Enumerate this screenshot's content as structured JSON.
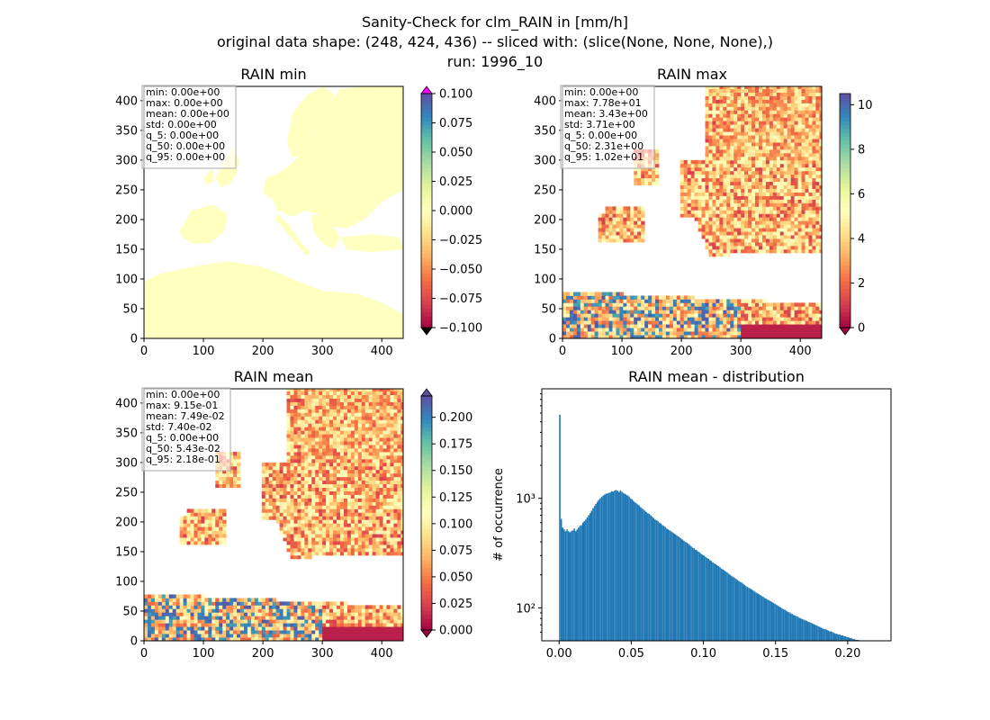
{
  "figure": {
    "title_lines": [
      "Sanity-Check for clm_RAIN in [mm/h]",
      "original data shape: (248, 424, 436) -- sliced with: (slice(None, None, None),)",
      "run: 1996_10"
    ]
  },
  "colors": {
    "axis": "#000000",
    "land_min": "#ffffbf",
    "hist_bar": "#1f77b4",
    "over_arrow_min": "#ff00ff",
    "under_arrow": "#000000",
    "spectral_r": [
      "#9e0142",
      "#d53e4f",
      "#f46d43",
      "#fdae61",
      "#fee08b",
      "#ffffbf",
      "#e6f598",
      "#abdda4",
      "#66c2a5",
      "#3288bd",
      "#5e4fa2"
    ]
  },
  "chart_data": [
    {
      "type": "heatmap",
      "title": "RAIN min",
      "xlim": [
        0,
        436
      ],
      "ylim": [
        0,
        424
      ],
      "x_ticks": [
        0,
        100,
        200,
        300,
        400
      ],
      "y_ticks": [
        0,
        50,
        100,
        150,
        200,
        250,
        300,
        350,
        400
      ],
      "colorbar": {
        "range": [
          -0.1,
          0.1
        ],
        "ticks": [
          -0.1,
          -0.075,
          -0.05,
          -0.025,
          0.0,
          0.025,
          0.05,
          0.075,
          0.1
        ],
        "tick_labels": [
          "−0.100",
          "−0.075",
          "−0.050",
          "−0.025",
          "0.000",
          "0.025",
          "0.050",
          "0.075",
          "0.100"
        ],
        "extend": "both"
      },
      "stats": [
        "min: 0.00e+00",
        "max: 0.00e+00",
        "mean: 0.00e+00",
        "std: 0.00e+00",
        "q_5: 0.00e+00",
        "q_50: 0.00e+00",
        "q_95: 0.00e+00"
      ]
    },
    {
      "type": "heatmap",
      "title": "RAIN max",
      "xlim": [
        0,
        436
      ],
      "ylim": [
        0,
        424
      ],
      "x_ticks": [
        0,
        100,
        200,
        300,
        400
      ],
      "y_ticks": [
        0,
        50,
        100,
        150,
        200,
        250,
        300,
        350,
        400
      ],
      "colorbar": {
        "range": [
          0,
          10.5
        ],
        "ticks": [
          0,
          2,
          4,
          6,
          8,
          10
        ],
        "tick_labels": [
          "0",
          "2",
          "4",
          "6",
          "8",
          "10"
        ],
        "extend": "min"
      },
      "stats": [
        "min: 0.00e+00",
        "max: 7.78e+01",
        "mean: 3.43e+00",
        "std: 3.71e+00",
        "q_5: 0.00e+00",
        "q_50: 2.31e+00",
        "q_95: 1.02e+01"
      ]
    },
    {
      "type": "heatmap",
      "title": "RAIN mean",
      "xlim": [
        0,
        436
      ],
      "ylim": [
        0,
        424
      ],
      "x_ticks": [
        0,
        100,
        200,
        300,
        400
      ],
      "y_ticks": [
        0,
        50,
        100,
        150,
        200,
        250,
        300,
        350,
        400
      ],
      "colorbar": {
        "range": [
          0,
          0.22
        ],
        "ticks": [
          0,
          0.025,
          0.05,
          0.075,
          0.1,
          0.125,
          0.15,
          0.175,
          0.2
        ],
        "tick_labels": [
          "0.000",
          "0.025",
          "0.050",
          "0.075",
          "0.100",
          "0.125",
          "0.150",
          "0.175",
          "0.200"
        ],
        "extend": "both"
      },
      "stats": [
        "min: 0.00e+00",
        "max: 9.15e-01",
        "mean: 7.49e-02",
        "std: 7.40e-02",
        "q_5: 0.00e+00",
        "q_50: 5.43e-02",
        "q_95: 2.18e-01"
      ]
    },
    {
      "type": "bar",
      "title": "RAIN mean - distribution",
      "ylabel": "# of occurrence",
      "xlim": [
        -0.012,
        0.23
      ],
      "ylim": [
        50,
        10000
      ],
      "ylog": true,
      "x_ticks": [
        0.0,
        0.05,
        0.1,
        0.15,
        0.2
      ],
      "x_tick_labels": [
        "0.00",
        "0.05",
        "0.10",
        "0.15",
        "0.20"
      ],
      "y_ticks": [
        100,
        1000
      ],
      "y_tick_labels": [
        "10²",
        "10³"
      ],
      "bin_width": 0.001,
      "x_start": 0.0,
      "values": [
        5800,
        650,
        540,
        520,
        500,
        520,
        500,
        490,
        500,
        510,
        530,
        500,
        520,
        540,
        560,
        570,
        600,
        620,
        640,
        670,
        700,
        730,
        770,
        810,
        850,
        890,
        930,
        970,
        1000,
        1030,
        1060,
        1080,
        1100,
        1110,
        1120,
        1130,
        1160,
        1150,
        1180,
        1190,
        1170,
        1140,
        1180,
        1150,
        1120,
        1100,
        1080,
        1060,
        1040,
        1000,
        980,
        950,
        920,
        900,
        880,
        860,
        830,
        810,
        790,
        770,
        750,
        730,
        720,
        700,
        680,
        660,
        640,
        630,
        620,
        600,
        590,
        570,
        560,
        550,
        530,
        520,
        510,
        500,
        490,
        480,
        470,
        460,
        450,
        440,
        430,
        420,
        410,
        400,
        395,
        385,
        375,
        365,
        355,
        350,
        340,
        335,
        325,
        320,
        310,
        305,
        300,
        292,
        285,
        280,
        272,
        268,
        260,
        255,
        250,
        245,
        240,
        235,
        228,
        224,
        220,
        215,
        210,
        205,
        200,
        196,
        192,
        188,
        184,
        180,
        176,
        172,
        170,
        166,
        162,
        158,
        155,
        152,
        150,
        147,
        144,
        141,
        138,
        136,
        133,
        131,
        128,
        126,
        123,
        121,
        119,
        117,
        115,
        113,
        111,
        109,
        107,
        105,
        103,
        101,
        99,
        97,
        96,
        94,
        92,
        91,
        89,
        88,
        86,
        85,
        84,
        83,
        81,
        80,
        79,
        78,
        77,
        76,
        75,
        74,
        73,
        72,
        71,
        70,
        69,
        68,
        67,
        66,
        65,
        64,
        64,
        63,
        62,
        61,
        61,
        60,
        59,
        58,
        58,
        57,
        57,
        56,
        56,
        55,
        55,
        54,
        54,
        53,
        53,
        52,
        52,
        51,
        51,
        51,
        50,
        50,
        50,
        50,
        50,
        50,
        50,
        50,
        50,
        50,
        50,
        50,
        50,
        50,
        50,
        50,
        50
      ]
    }
  ]
}
